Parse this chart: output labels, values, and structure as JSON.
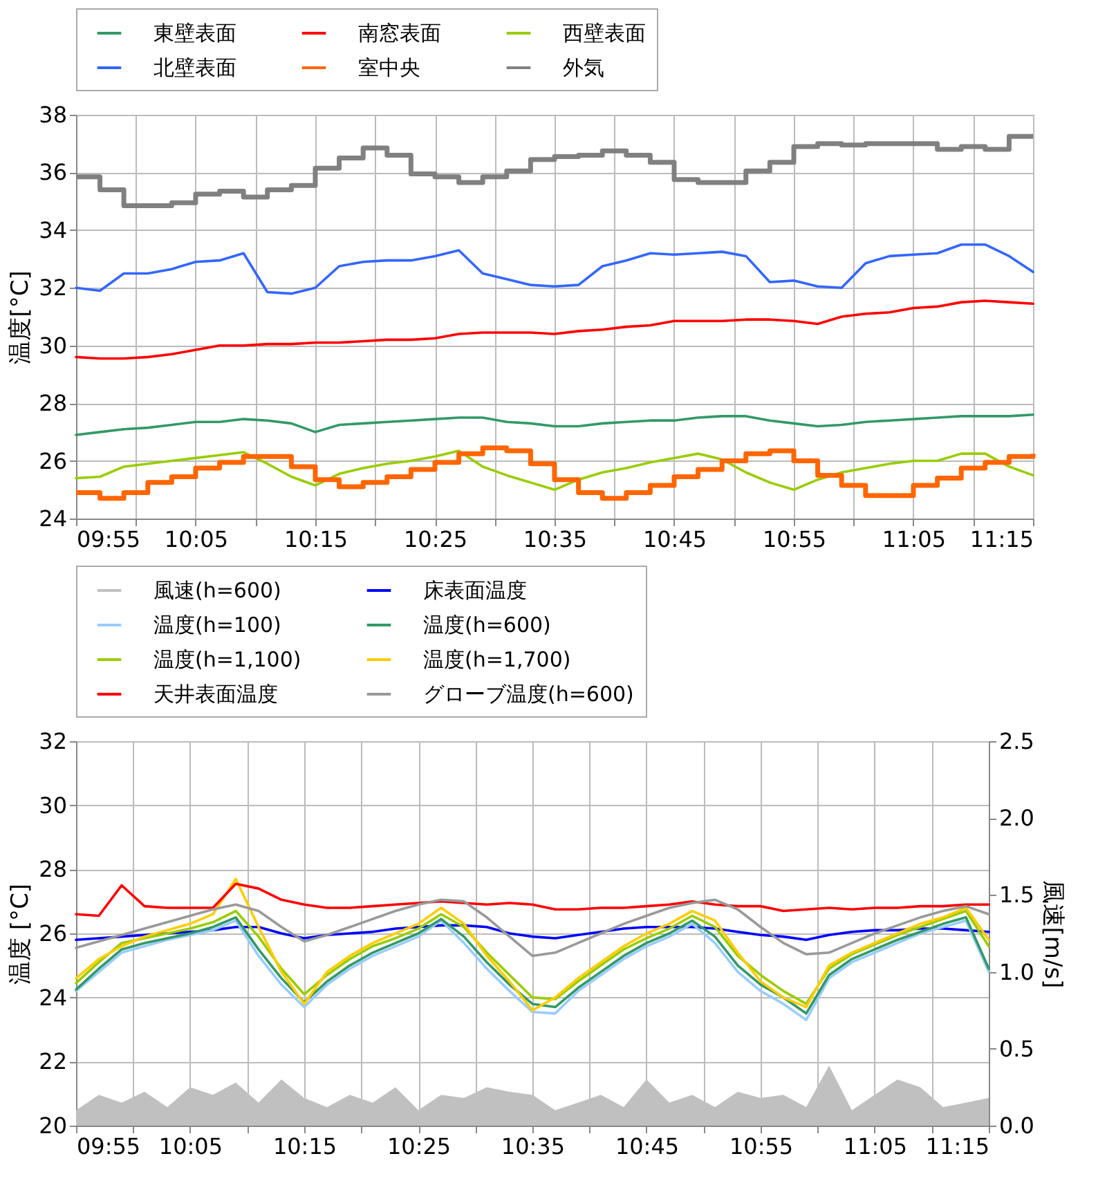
{
  "chart_data": [
    {
      "type": "line",
      "ylabel": "温度[°C]",
      "legend": "top",
      "grid": true,
      "xlim": [
        9.9167,
        11.25
      ],
      "ylim": [
        24,
        38
      ],
      "yticks": [
        24,
        26,
        28,
        30,
        32,
        34,
        36,
        38
      ],
      "xticks": [
        {
          "value": 9.9167,
          "label": "09:55"
        },
        {
          "value": 10,
          "label": null
        },
        {
          "value": 10.0833,
          "label": "10:05"
        },
        {
          "value": 10.1667,
          "label": null
        },
        {
          "value": 10.25,
          "label": "10:15"
        },
        {
          "value": 10.3333,
          "label": null
        },
        {
          "value": 10.4167,
          "label": "10:25"
        },
        {
          "value": 10.5,
          "label": null
        },
        {
          "value": 10.5833,
          "label": "10:35"
        },
        {
          "value": 10.6667,
          "label": null
        },
        {
          "value": 10.75,
          "label": "10:45"
        },
        {
          "value": 10.8333,
          "label": null
        },
        {
          "value": 10.9167,
          "label": "10:55"
        },
        {
          "value": 11,
          "label": null
        },
        {
          "value": 11.0833,
          "label": "11:05"
        },
        {
          "value": 11.1667,
          "label": null
        },
        {
          "value": 11.25,
          "label": "11:15"
        }
      ],
      "x": [
        9.9167,
        9.95,
        9.9833,
        10.0167,
        10.05,
        10.0833,
        10.1167,
        10.15,
        10.1833,
        10.2167,
        10.25,
        10.2833,
        10.3167,
        10.35,
        10.3833,
        10.4167,
        10.45,
        10.4833,
        10.5167,
        10.55,
        10.5833,
        10.6167,
        10.65,
        10.6833,
        10.7167,
        10.75,
        10.7833,
        10.8167,
        10.85,
        10.8833,
        10.9167,
        10.95,
        10.9833,
        11.0167,
        11.05,
        11.0833,
        11.1167,
        11.15,
        11.1833,
        11.2167,
        11.25
      ],
      "series": [
        {
          "name": "東壁表面",
          "color": "#339966",
          "values": [
            26.9,
            27.0,
            27.1,
            27.15,
            27.25,
            27.35,
            27.35,
            27.45,
            27.4,
            27.3,
            27.0,
            27.25,
            27.3,
            27.35,
            27.4,
            27.45,
            27.5,
            27.5,
            27.35,
            27.3,
            27.2,
            27.2,
            27.3,
            27.35,
            27.4,
            27.4,
            27.5,
            27.55,
            27.55,
            27.4,
            27.3,
            27.2,
            27.25,
            27.35,
            27.4,
            27.45,
            27.5,
            27.55,
            27.55,
            27.55,
            27.6
          ]
        },
        {
          "name": "南窓表面",
          "color": "#ff0000",
          "values": [
            29.6,
            29.55,
            29.55,
            29.6,
            29.7,
            29.85,
            30.0,
            30.0,
            30.05,
            30.05,
            30.1,
            30.1,
            30.15,
            30.2,
            30.2,
            30.25,
            30.4,
            30.45,
            30.45,
            30.45,
            30.4,
            30.5,
            30.55,
            30.65,
            30.7,
            30.85,
            30.85,
            30.85,
            30.9,
            30.9,
            30.85,
            30.75,
            31.0,
            31.1,
            31.15,
            31.3,
            31.35,
            31.5,
            31.55,
            31.5,
            31.45
          ]
        },
        {
          "name": "西壁表面",
          "color": "#99cc00",
          "values": [
            25.4,
            25.45,
            25.8,
            25.9,
            26.0,
            26.1,
            26.2,
            26.3,
            25.9,
            25.45,
            25.15,
            25.55,
            25.75,
            25.9,
            26.0,
            26.15,
            26.35,
            25.8,
            25.5,
            25.25,
            25.0,
            25.35,
            25.6,
            25.75,
            25.95,
            26.1,
            26.25,
            26.05,
            25.6,
            25.25,
            25.0,
            25.35,
            25.6,
            25.75,
            25.9,
            26.0,
            26.0,
            26.25,
            26.25,
            25.8,
            25.5
          ]
        },
        {
          "name": "北壁表面",
          "color": "#3366ff",
          "values": [
            32.0,
            31.9,
            32.5,
            32.5,
            32.65,
            32.9,
            32.95,
            33.2,
            31.85,
            31.8,
            32.0,
            32.75,
            32.9,
            32.95,
            32.95,
            33.1,
            33.3,
            32.5,
            32.3,
            32.1,
            32.05,
            32.1,
            32.75,
            32.95,
            33.2,
            33.15,
            33.2,
            33.25,
            33.1,
            32.2,
            32.25,
            32.05,
            32.0,
            32.85,
            33.1,
            33.15,
            33.2,
            33.5,
            33.5,
            33.1,
            32.55
          ]
        },
        {
          "name": "室中央",
          "type": "step",
          "color": "#ff6600",
          "values": [
            24.9,
            24.7,
            24.9,
            25.25,
            25.45,
            25.75,
            25.95,
            26.15,
            26.15,
            25.8,
            25.35,
            25.1,
            25.25,
            25.45,
            25.7,
            25.95,
            26.25,
            26.45,
            26.35,
            25.9,
            25.35,
            24.9,
            24.7,
            24.9,
            25.15,
            25.45,
            25.7,
            26.0,
            26.25,
            26.35,
            26.0,
            25.5,
            25.15,
            24.8,
            24.8,
            25.15,
            25.4,
            25.75,
            25.95,
            26.15,
            26.25
          ]
        },
        {
          "name": "外気",
          "type": "step",
          "color": "#808080",
          "values": [
            35.85,
            35.4,
            34.85,
            34.85,
            34.95,
            35.25,
            35.35,
            35.15,
            35.4,
            35.55,
            36.15,
            36.5,
            36.85,
            36.6,
            35.95,
            35.85,
            35.65,
            35.85,
            36.05,
            36.45,
            36.55,
            36.6,
            36.75,
            36.6,
            36.35,
            35.75,
            35.65,
            35.65,
            36.05,
            36.35,
            36.9,
            37.0,
            36.95,
            37.0,
            37.0,
            37.0,
            36.8,
            36.9,
            36.8,
            37.25,
            37.25
          ]
        }
      ]
    },
    {
      "type": "line",
      "ylabel": "温度 [°C]",
      "y2label": "風速[m/s]",
      "legend": "top",
      "grid": true,
      "xlim": [
        9.9167,
        11.25
      ],
      "ylim": [
        20,
        32
      ],
      "yticks": [
        20,
        22,
        24,
        26,
        28,
        30,
        32
      ],
      "y2lim": [
        0,
        2.5
      ],
      "y2ticks": [
        {
          "value": 0,
          "label": "0.0"
        },
        {
          "value": 0.5,
          "label": "0.5"
        },
        {
          "value": 1,
          "label": "1.0"
        },
        {
          "value": 1.5,
          "label": "1.5"
        },
        {
          "value": 2,
          "label": "2.0"
        },
        {
          "value": 2.5,
          "label": "2.5"
        }
      ],
      "xticks": [
        {
          "value": 9.9167,
          "label": "09:55"
        },
        {
          "value": 10,
          "label": null
        },
        {
          "value": 10.0833,
          "label": "10:05"
        },
        {
          "value": 10.1667,
          "label": null
        },
        {
          "value": 10.25,
          "label": "10:15"
        },
        {
          "value": 10.3333,
          "label": null
        },
        {
          "value": 10.4167,
          "label": "10:25"
        },
        {
          "value": 10.5,
          "label": null
        },
        {
          "value": 10.5833,
          "label": "10:35"
        },
        {
          "value": 10.6667,
          "label": null
        },
        {
          "value": 10.75,
          "label": "10:45"
        },
        {
          "value": 10.8333,
          "label": null
        },
        {
          "value": 10.9167,
          "label": "10:55"
        },
        {
          "value": 11,
          "label": null
        },
        {
          "value": 11.0833,
          "label": "11:05"
        },
        {
          "value": 11.1667,
          "label": null
        },
        {
          "value": 11.25,
          "label": "11:15"
        }
      ],
      "x": [
        9.9167,
        9.95,
        9.9833,
        10.0167,
        10.05,
        10.0833,
        10.1167,
        10.15,
        10.1833,
        10.2167,
        10.25,
        10.2833,
        10.3167,
        10.35,
        10.3833,
        10.4167,
        10.45,
        10.4833,
        10.5167,
        10.55,
        10.5833,
        10.6167,
        10.65,
        10.6833,
        10.7167,
        10.75,
        10.7833,
        10.8167,
        10.85,
        10.8833,
        10.9167,
        10.95,
        10.9833,
        11.0167,
        11.05,
        11.0833,
        11.1167,
        11.15,
        11.1833,
        11.2167,
        11.25
      ],
      "series": [
        {
          "name": "風速(h=600)",
          "type": "area",
          "axis": "y2",
          "color": "#c0c0c0",
          "values": [
            0.1,
            0.2,
            0.15,
            0.22,
            0.12,
            0.25,
            0.2,
            0.28,
            0.15,
            0.3,
            0.18,
            0.12,
            0.2,
            0.15,
            0.25,
            0.1,
            0.2,
            0.18,
            0.25,
            0.22,
            0.2,
            0.1,
            0.15,
            0.2,
            0.12,
            0.3,
            0.15,
            0.2,
            0.12,
            0.22,
            0.18,
            0.2,
            0.12,
            0.39,
            0.1,
            0.2,
            0.3,
            0.25,
            0.12,
            0.15,
            0.18
          ]
        },
        {
          "name": "床表面温度",
          "color": "#0000ff",
          "values": [
            25.8,
            25.85,
            25.9,
            25.95,
            26.0,
            26.05,
            26.1,
            26.2,
            26.2,
            26.0,
            25.85,
            25.95,
            26.0,
            26.05,
            26.15,
            26.2,
            26.25,
            26.25,
            26.2,
            26.0,
            25.9,
            25.85,
            25.95,
            26.05,
            26.15,
            26.2,
            26.2,
            26.2,
            26.15,
            26.05,
            25.95,
            25.9,
            25.8,
            25.95,
            26.05,
            26.1,
            26.1,
            26.15,
            26.15,
            26.1,
            26.05
          ]
        },
        {
          "name": "温度(h=100)",
          "color": "#99ccff",
          "values": [
            24.2,
            24.8,
            25.4,
            25.6,
            25.8,
            25.95,
            26.1,
            26.4,
            25.3,
            24.4,
            23.7,
            24.4,
            24.9,
            25.3,
            25.6,
            25.9,
            26.4,
            25.7,
            24.9,
            24.2,
            23.55,
            23.5,
            24.2,
            24.7,
            25.2,
            25.6,
            25.9,
            26.3,
            25.7,
            24.8,
            24.2,
            23.8,
            23.3,
            24.6,
            25.1,
            25.4,
            25.7,
            26.0,
            26.2,
            26.4,
            24.8
          ]
        },
        {
          "name": "温度(h=600)",
          "color": "#339966",
          "values": [
            24.25,
            24.9,
            25.5,
            25.7,
            25.85,
            26.0,
            26.2,
            26.5,
            25.5,
            24.6,
            23.85,
            24.5,
            25.0,
            25.4,
            25.7,
            26.0,
            26.45,
            25.9,
            25.1,
            24.4,
            23.8,
            23.7,
            24.3,
            24.8,
            25.3,
            25.7,
            26.0,
            26.4,
            25.9,
            25.0,
            24.4,
            24.0,
            23.5,
            24.7,
            25.2,
            25.5,
            25.8,
            26.05,
            26.3,
            26.5,
            24.9
          ]
        },
        {
          "name": "温度(h=1,100)",
          "color": "#99cc00",
          "values": [
            24.45,
            25.1,
            25.7,
            25.85,
            26.0,
            26.15,
            26.35,
            26.7,
            25.9,
            24.9,
            24.1,
            24.7,
            25.2,
            25.6,
            25.85,
            26.15,
            26.6,
            26.2,
            25.4,
            24.7,
            24.0,
            23.95,
            24.5,
            25.0,
            25.5,
            25.85,
            26.15,
            26.55,
            26.2,
            25.3,
            24.7,
            24.2,
            23.8,
            24.9,
            25.35,
            25.65,
            25.95,
            26.2,
            26.45,
            26.7,
            25.6
          ]
        },
        {
          "name": "温度(h=1,700)",
          "color": "#ffcc00",
          "values": [
            24.6,
            25.2,
            25.6,
            25.9,
            26.1,
            26.3,
            26.6,
            27.7,
            26.2,
            24.8,
            23.8,
            24.8,
            25.3,
            25.7,
            26.0,
            26.3,
            26.8,
            26.3,
            25.3,
            24.5,
            23.6,
            24.0,
            24.6,
            25.1,
            25.6,
            26.0,
            26.3,
            26.7,
            26.4,
            25.4,
            24.5,
            24.0,
            23.7,
            25.0,
            25.4,
            25.7,
            26.0,
            26.3,
            26.5,
            26.8,
            25.8
          ]
        },
        {
          "name": "天井表面温度",
          "color": "#ff0000",
          "values": [
            26.6,
            26.55,
            27.5,
            26.85,
            26.8,
            26.8,
            26.8,
            27.55,
            27.4,
            27.05,
            26.9,
            26.8,
            26.8,
            26.85,
            26.9,
            26.95,
            27.0,
            26.95,
            26.9,
            26.95,
            26.9,
            26.75,
            26.75,
            26.8,
            26.8,
            26.85,
            26.9,
            27.0,
            26.9,
            26.85,
            26.85,
            26.7,
            26.75,
            26.8,
            26.75,
            26.8,
            26.8,
            26.85,
            26.85,
            26.9,
            26.9
          ]
        },
        {
          "name": "グローブ温度(h=600)",
          "color": "#999999",
          "values": [
            25.55,
            25.75,
            25.95,
            26.15,
            26.35,
            26.55,
            26.75,
            26.9,
            26.7,
            26.2,
            25.75,
            25.95,
            26.2,
            26.45,
            26.7,
            26.9,
            27.05,
            27.0,
            26.5,
            25.9,
            25.3,
            25.4,
            25.7,
            26.0,
            26.3,
            26.55,
            26.8,
            26.95,
            27.05,
            26.75,
            26.2,
            25.7,
            25.35,
            25.4,
            25.7,
            26.0,
            26.25,
            26.5,
            26.7,
            26.85,
            26.6
          ]
        }
      ]
    }
  ]
}
